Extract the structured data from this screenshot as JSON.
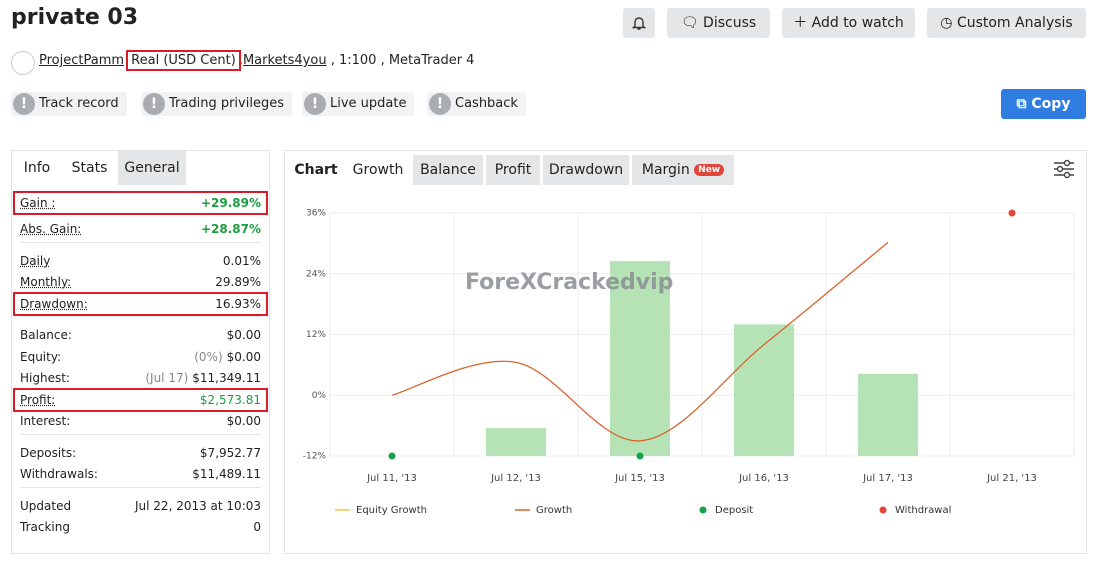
{
  "header": {
    "title": "private 03",
    "buttons": [
      "Discuss",
      "Add to watch",
      "Custom Analysis"
    ],
    "account": {
      "owner": "ProjectPamm",
      "type": "Real (USD Cent)",
      "separator": ",",
      "broker": "Markets4you",
      "details": ", 1:100 , MetaTrader 4"
    },
    "badges": [
      "Track record",
      "Trading privileges",
      "Live update",
      "Cashback"
    ],
    "copy": "Copy"
  },
  "stats": {
    "tabs": [
      "Info",
      "Stats",
      "General"
    ],
    "groups": [
      [
        {
          "label": "Gain :",
          "value": "+29.89%",
          "value_color": "#1a9e3f",
          "highlight": true
        },
        {
          "label": "Abs. Gain:",
          "value": "+28.87%",
          "value_color": "#1a9e3f"
        }
      ],
      [
        {
          "label": "Daily",
          "value": "0.01%"
        },
        {
          "label": "Monthly:",
          "value": "29.89%"
        },
        {
          "label": "Drawdown:",
          "value": "16.93%",
          "highlight": true
        }
      ],
      [
        {
          "label": "Balance:",
          "value": "$0.00"
        },
        {
          "label": "Equity:",
          "note": "(0%)",
          "value": "$0.00"
        },
        {
          "label": "Highest:",
          "note": "(Jul 17)",
          "value": "$11,349.11"
        },
        {
          "label": "Profit:",
          "value": "$2,573.81",
          "value_color": "#1a9e3f",
          "highlight": true
        },
        {
          "label": "Interest:",
          "value": "$0.00"
        }
      ],
      [
        {
          "label": "Deposits:",
          "value": "$7,952.77"
        },
        {
          "label": "Withdrawals:",
          "value": "$11,489.11"
        }
      ],
      [
        {
          "label": "Updated",
          "value": "Jul 22, 2013 at 10:03"
        },
        {
          "label": "Tracking",
          "value": "0"
        }
      ]
    ]
  },
  "chart_tabs": {
    "title": "Chart",
    "tabs": [
      "Growth",
      "Balance",
      "Profit",
      "Drawdown",
      "Margin"
    ],
    "badge": "New"
  },
  "watermark": "ForeXCrackedvip",
  "chart_data": {
    "type": "combo",
    "categories": [
      "Jul 11, '13",
      "Jul 12, '13",
      "Jul 15, '13",
      "Jul 16, '13",
      "Jul 17, '13",
      "Jul 21, '13"
    ],
    "ylim": [
      -12,
      36
    ],
    "yticks": [
      {
        "value": -12,
        "label": "-12%"
      },
      {
        "value": 0,
        "label": "0%"
      },
      {
        "value": 12,
        "label": "12%"
      },
      {
        "value": 24,
        "label": "24%"
      },
      {
        "value": 36,
        "label": "36%"
      }
    ],
    "grid": true,
    "bars": {
      "color": "#b5e3b5",
      "values": [
        null,
        -6.5,
        26.5,
        14,
        4.2,
        null
      ]
    },
    "series": [
      {
        "name": "Equity Growth",
        "color": "#f2c94c",
        "kind": "line",
        "values": [
          null,
          null,
          null,
          null,
          null,
          null
        ]
      },
      {
        "name": "Growth",
        "color": "#d9622b",
        "kind": "line",
        "values": [
          0,
          6.5,
          -9,
          10,
          30.2,
          null
        ]
      },
      {
        "name": "Deposit",
        "color": "#16a34a",
        "kind": "dot",
        "values": [
          -12,
          null,
          -12,
          null,
          null,
          null
        ]
      },
      {
        "name": "Withdrawal",
        "color": "#e0463a",
        "kind": "dot",
        "values": [
          null,
          null,
          null,
          null,
          null,
          36
        ]
      }
    ]
  }
}
